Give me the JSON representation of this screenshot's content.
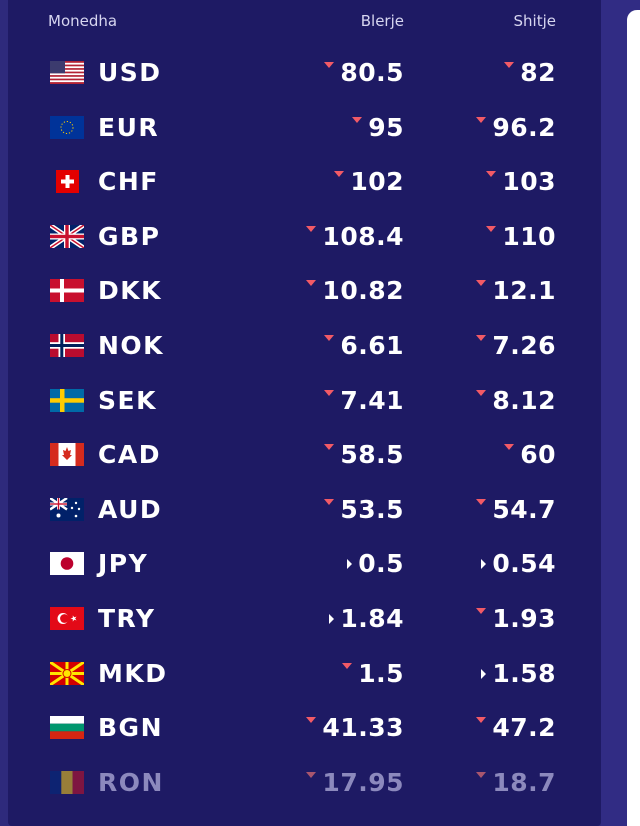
{
  "header": {
    "currency": "Monedha",
    "buy": "Blerje",
    "sell": "Shitje"
  },
  "colors": {
    "panel": "#1e1a64",
    "down_arrow": "#f25a66",
    "text": "#ffffff"
  },
  "rows": [
    {
      "code": "USD",
      "flag": "us-flag-icon",
      "buy": "80.5",
      "buy_trend": "down",
      "sell": "82",
      "sell_trend": "down"
    },
    {
      "code": "EUR",
      "flag": "eu-flag-icon",
      "buy": "95",
      "buy_trend": "down",
      "sell": "96.2",
      "sell_trend": "down"
    },
    {
      "code": "CHF",
      "flag": "ch-flag-icon",
      "buy": "102",
      "buy_trend": "down",
      "sell": "103",
      "sell_trend": "down"
    },
    {
      "code": "GBP",
      "flag": "gb-flag-icon",
      "buy": "108.4",
      "buy_trend": "down",
      "sell": "110",
      "sell_trend": "down"
    },
    {
      "code": "DKK",
      "flag": "dk-flag-icon",
      "buy": "10.82",
      "buy_trend": "down",
      "sell": "12.1",
      "sell_trend": "down"
    },
    {
      "code": "NOK",
      "flag": "no-flag-icon",
      "buy": "6.61",
      "buy_trend": "down",
      "sell": "7.26",
      "sell_trend": "down"
    },
    {
      "code": "SEK",
      "flag": "se-flag-icon",
      "buy": "7.41",
      "buy_trend": "down",
      "sell": "8.12",
      "sell_trend": "down"
    },
    {
      "code": "CAD",
      "flag": "ca-flag-icon",
      "buy": "58.5",
      "buy_trend": "down",
      "sell": "60",
      "sell_trend": "down"
    },
    {
      "code": "AUD",
      "flag": "au-flag-icon",
      "buy": "53.5",
      "buy_trend": "down",
      "sell": "54.7",
      "sell_trend": "down"
    },
    {
      "code": "JPY",
      "flag": "jp-flag-icon",
      "buy": "0.5",
      "buy_trend": "same",
      "sell": "0.54",
      "sell_trend": "same"
    },
    {
      "code": "TRY",
      "flag": "tr-flag-icon",
      "buy": "1.84",
      "buy_trend": "same",
      "sell": "1.93",
      "sell_trend": "down"
    },
    {
      "code": "MKD",
      "flag": "mk-flag-icon",
      "buy": "1.5",
      "buy_trend": "down",
      "sell": "1.58",
      "sell_trend": "same"
    },
    {
      "code": "BGN",
      "flag": "bg-flag-icon",
      "buy": "41.33",
      "buy_trend": "down",
      "sell": "47.2",
      "sell_trend": "down"
    },
    {
      "code": "RON",
      "flag": "ro-flag-icon",
      "buy": "17.95",
      "buy_trend": "down",
      "sell": "18.7",
      "sell_trend": "down"
    }
  ]
}
